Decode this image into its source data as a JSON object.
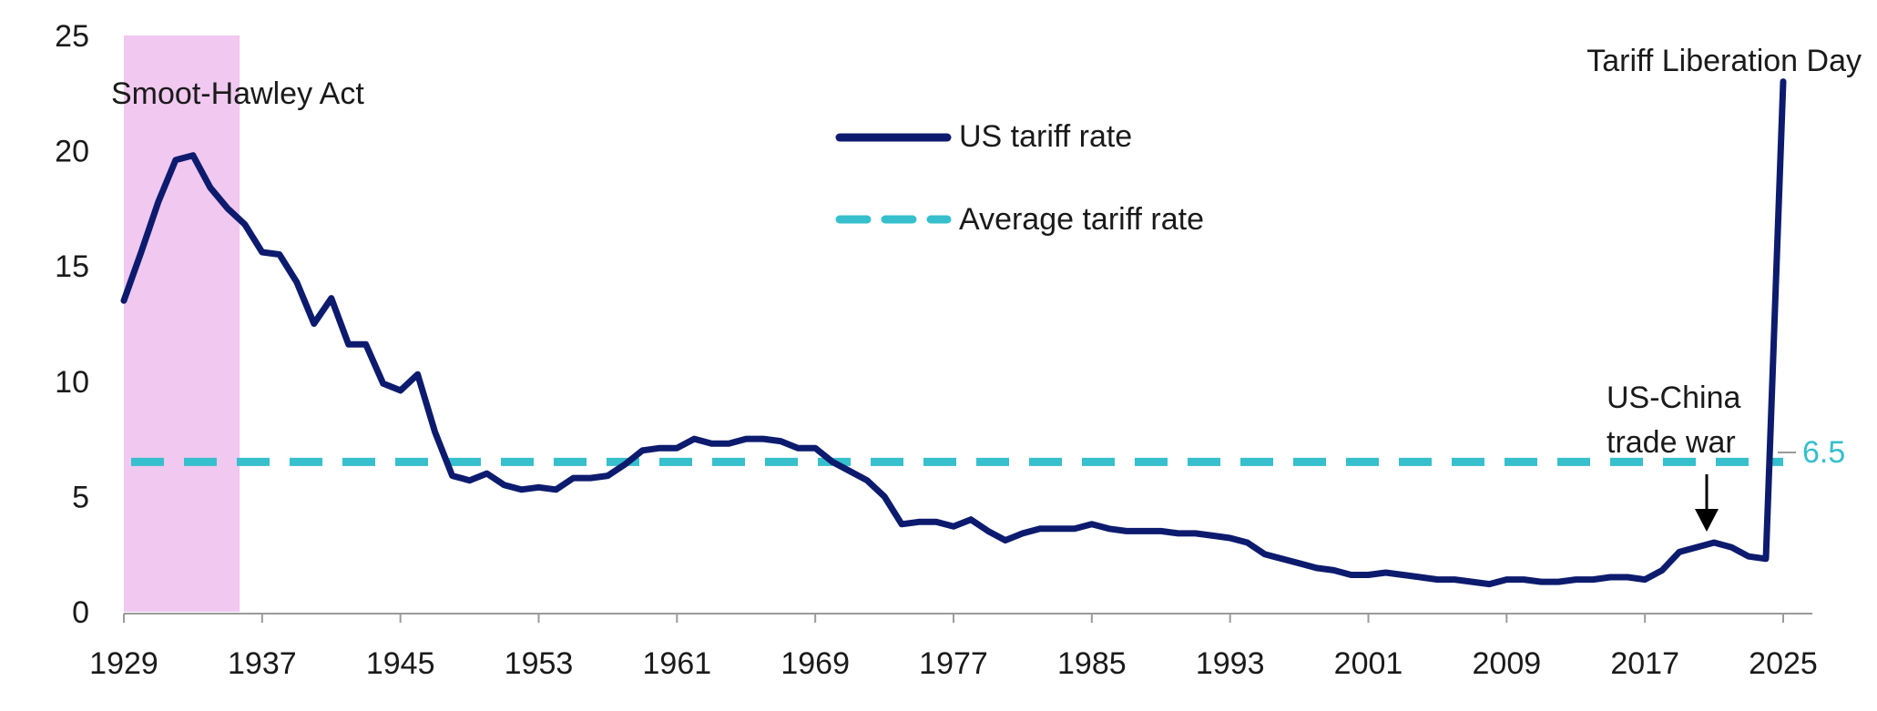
{
  "chart_data": {
    "type": "line",
    "title": "",
    "xlabel": "",
    "ylabel": "",
    "xlim": [
      1929,
      2025
    ],
    "ylim": [
      0,
      25
    ],
    "x_ticks": [
      1929,
      1937,
      1945,
      1953,
      1961,
      1969,
      1977,
      1985,
      1993,
      2001,
      2009,
      2017,
      2025
    ],
    "y_ticks": [
      0,
      5,
      10,
      15,
      20,
      25
    ],
    "series": [
      {
        "name": "US tariff rate",
        "color": "#0d1b6e",
        "style": "solid",
        "x": [
          1929,
          1930,
          1931,
          1932,
          1933,
          1934,
          1935,
          1936,
          1937,
          1938,
          1939,
          1940,
          1941,
          1942,
          1943,
          1944,
          1945,
          1946,
          1947,
          1948,
          1949,
          1950,
          1951,
          1952,
          1953,
          1954,
          1955,
          1956,
          1957,
          1958,
          1959,
          1960,
          1961,
          1962,
          1963,
          1964,
          1965,
          1966,
          1967,
          1968,
          1969,
          1970,
          1971,
          1972,
          1973,
          1974,
          1975,
          1976,
          1977,
          1978,
          1979,
          1980,
          1981,
          1982,
          1983,
          1984,
          1985,
          1986,
          1987,
          1988,
          1989,
          1990,
          1991,
          1992,
          1993,
          1994,
          1995,
          1996,
          1997,
          1998,
          1999,
          2000,
          2001,
          2002,
          2003,
          2004,
          2005,
          2006,
          2007,
          2008,
          2009,
          2010,
          2011,
          2012,
          2013,
          2014,
          2015,
          2016,
          2017,
          2018,
          2019,
          2020,
          2021,
          2022,
          2023,
          2024,
          2025
        ],
        "values": [
          13.5,
          15.6,
          17.8,
          19.6,
          19.8,
          18.4,
          17.5,
          16.8,
          15.6,
          15.5,
          14.3,
          12.5,
          13.6,
          11.6,
          11.6,
          9.9,
          9.6,
          10.3,
          7.8,
          5.9,
          5.7,
          6.0,
          5.5,
          5.3,
          5.4,
          5.3,
          5.8,
          5.8,
          5.9,
          6.4,
          7.0,
          7.1,
          7.1,
          7.5,
          7.3,
          7.3,
          7.5,
          7.5,
          7.4,
          7.1,
          7.1,
          6.5,
          6.1,
          5.7,
          5.0,
          3.8,
          3.9,
          3.9,
          3.7,
          4.0,
          3.5,
          3.1,
          3.4,
          3.6,
          3.6,
          3.6,
          3.8,
          3.6,
          3.5,
          3.5,
          3.5,
          3.4,
          3.4,
          3.3,
          3.2,
          3.0,
          2.5,
          2.3,
          2.1,
          1.9,
          1.8,
          1.6,
          1.6,
          1.7,
          1.6,
          1.5,
          1.4,
          1.4,
          1.3,
          1.2,
          1.4,
          1.4,
          1.3,
          1.3,
          1.4,
          1.4,
          1.5,
          1.5,
          1.4,
          1.8,
          2.6,
          2.8,
          3.0,
          2.8,
          2.4,
          2.3,
          23.0
        ]
      },
      {
        "name": "Average tariff rate",
        "color": "#36bfcc",
        "style": "dashed",
        "x": [
          1929,
          2025
        ],
        "values": [
          6.5,
          6.5
        ]
      }
    ],
    "shaded_region": {
      "label": "Smoot-Hawley Act",
      "x_range": [
        1929,
        1935.7
      ],
      "color": "#f0c8f0"
    },
    "annotations": [
      {
        "text": "Tariff Liberation Day",
        "x": 2025,
        "y": 23.0
      },
      {
        "text_lines": [
          "US-China",
          "trade war"
        ],
        "x": 2020,
        "y": 3.3,
        "arrow": true
      }
    ],
    "average_label": "6.5",
    "legend": {
      "position": "top-center"
    }
  }
}
